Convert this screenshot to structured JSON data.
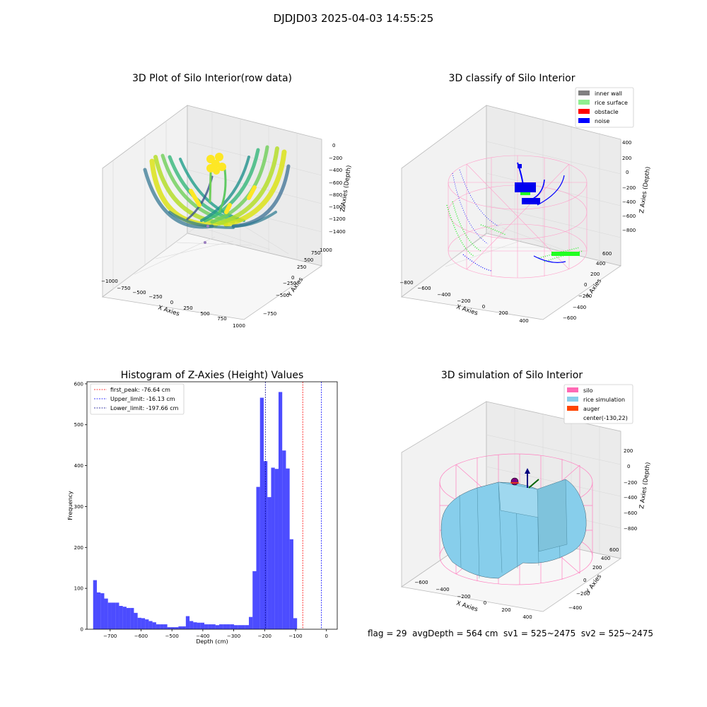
{
  "figure": {
    "suptitle": "DJDJD03 2025-04-03 14:55:25"
  },
  "footer": {
    "text": "flag = 29  avgDepth = 564 cm  sv1 = 525~2475  sv2 = 525~2475"
  },
  "panels": {
    "raw": {
      "title": "3D Plot of Silo Interior(row data)",
      "xlabel": "X Axies",
      "ylabel": "Y Axies",
      "zlabel": "Z Axies (Depth)",
      "xticks": [
        "−1000",
        "−750",
        "−500",
        "−250",
        "0",
        "250",
        "500",
        "750",
        "1000"
      ],
      "yticks": [
        "−750",
        "−500",
        "−250",
        "0",
        "250",
        "500",
        "750",
        "1000"
      ],
      "zticks": [
        "0",
        "−200",
        "−400",
        "−600",
        "−800",
        "−1000",
        "−1200",
        "−1400"
      ],
      "colormap": [
        "#440154",
        "#31688e",
        "#21918c",
        "#35b779",
        "#fde725"
      ]
    },
    "classify": {
      "title": "3D classify of Silo Interior",
      "xlabel": "X Axies",
      "ylabel": "Y Axies",
      "zlabel": "Z Axies (Depth)",
      "xticks": [
        "−800",
        "−600",
        "−400",
        "−200",
        "0",
        "200",
        "400"
      ],
      "yticks": [
        "−600",
        "−400",
        "−200",
        "0",
        "200",
        "400",
        "600"
      ],
      "zticks": [
        "400",
        "200",
        "0",
        "−200",
        "−400",
        "−600",
        "−800"
      ],
      "legend": [
        {
          "label": "inner wall",
          "color": "#808080"
        },
        {
          "label": "rice surface",
          "color": "#90ee90"
        },
        {
          "label": "obstacle",
          "color": "#ff0000"
        },
        {
          "label": "noise",
          "color": "#0000ff"
        }
      ]
    },
    "simulation": {
      "title": "3D simulation of Silo Interior",
      "xlabel": "X Axies",
      "ylabel": "Y Axies",
      "zlabel": "Z Axies (Depth)",
      "xticks": [
        "−600",
        "−400",
        "−200",
        "0",
        "200",
        "400"
      ],
      "yticks": [
        "−400",
        "−200",
        "0",
        "200",
        "400",
        "600"
      ],
      "zticks": [
        "200",
        "0",
        "−200",
        "−400",
        "−600",
        "−800"
      ],
      "legend": [
        {
          "label": "silo",
          "color": "#ff69b4"
        },
        {
          "label": "rice simulation",
          "color": "#87ceeb"
        },
        {
          "label": "auger",
          "color": "#ff4500"
        },
        {
          "label": "center(-130,22)",
          "color": ""
        }
      ]
    }
  },
  "chart_data": {
    "type": "bar",
    "title": "Histogram of Z-Axies (Height) Values",
    "xlabel": "Depth (cm)",
    "ylabel": "Frequency",
    "xlim": [
      -775,
      35
    ],
    "ylim": [
      0,
      605
    ],
    "bar_color": "#0000ff",
    "xticks": [
      -700,
      -600,
      -500,
      -400,
      -300,
      -200,
      -100,
      0
    ],
    "yticks": [
      0,
      100,
      200,
      300,
      400,
      500,
      600
    ],
    "bin_width": 12,
    "bin_starts": [
      -755,
      -743,
      -731,
      -719,
      -707,
      -695,
      -683,
      -671,
      -659,
      -647,
      -635,
      -623,
      -611,
      -599,
      -587,
      -575,
      -563,
      -551,
      -539,
      -527,
      -515,
      -503,
      -491,
      -479,
      -467,
      -455,
      -443,
      -431,
      -419,
      -407,
      -395,
      -383,
      -371,
      -359,
      -347,
      -335,
      -323,
      -311,
      -299,
      -287,
      -275,
      -263,
      -251,
      -239,
      -227,
      -215,
      -203,
      -191,
      -179,
      -167,
      -155,
      -143,
      -131,
      -119,
      -107,
      -95,
      -83,
      -71,
      -59,
      -47,
      -35,
      -23,
      -11
    ],
    "values": [
      120,
      90,
      88,
      75,
      65,
      65,
      65,
      57,
      55,
      52,
      52,
      40,
      28,
      27,
      24,
      20,
      17,
      12,
      12,
      12,
      5,
      5,
      5,
      7,
      7,
      32,
      20,
      17,
      16,
      16,
      12,
      12,
      12,
      10,
      12,
      12,
      12,
      12,
      10,
      10,
      10,
      10,
      30,
      142,
      348,
      566,
      411,
      323,
      395,
      392,
      580,
      437,
      393,
      220,
      27,
      0,
      0,
      0,
      0,
      0,
      0,
      0,
      0
    ],
    "vlines": [
      {
        "label": "first_peak: -76.64 cm",
        "x": -76.64,
        "color": "#ff0000"
      },
      {
        "label": "Upper_limit: -16.13 cm",
        "x": -16.13,
        "color": "#0000ff"
      },
      {
        "label": "Lower_limit: -197.66 cm",
        "x": -197.66,
        "color": "#00008b"
      }
    ]
  }
}
